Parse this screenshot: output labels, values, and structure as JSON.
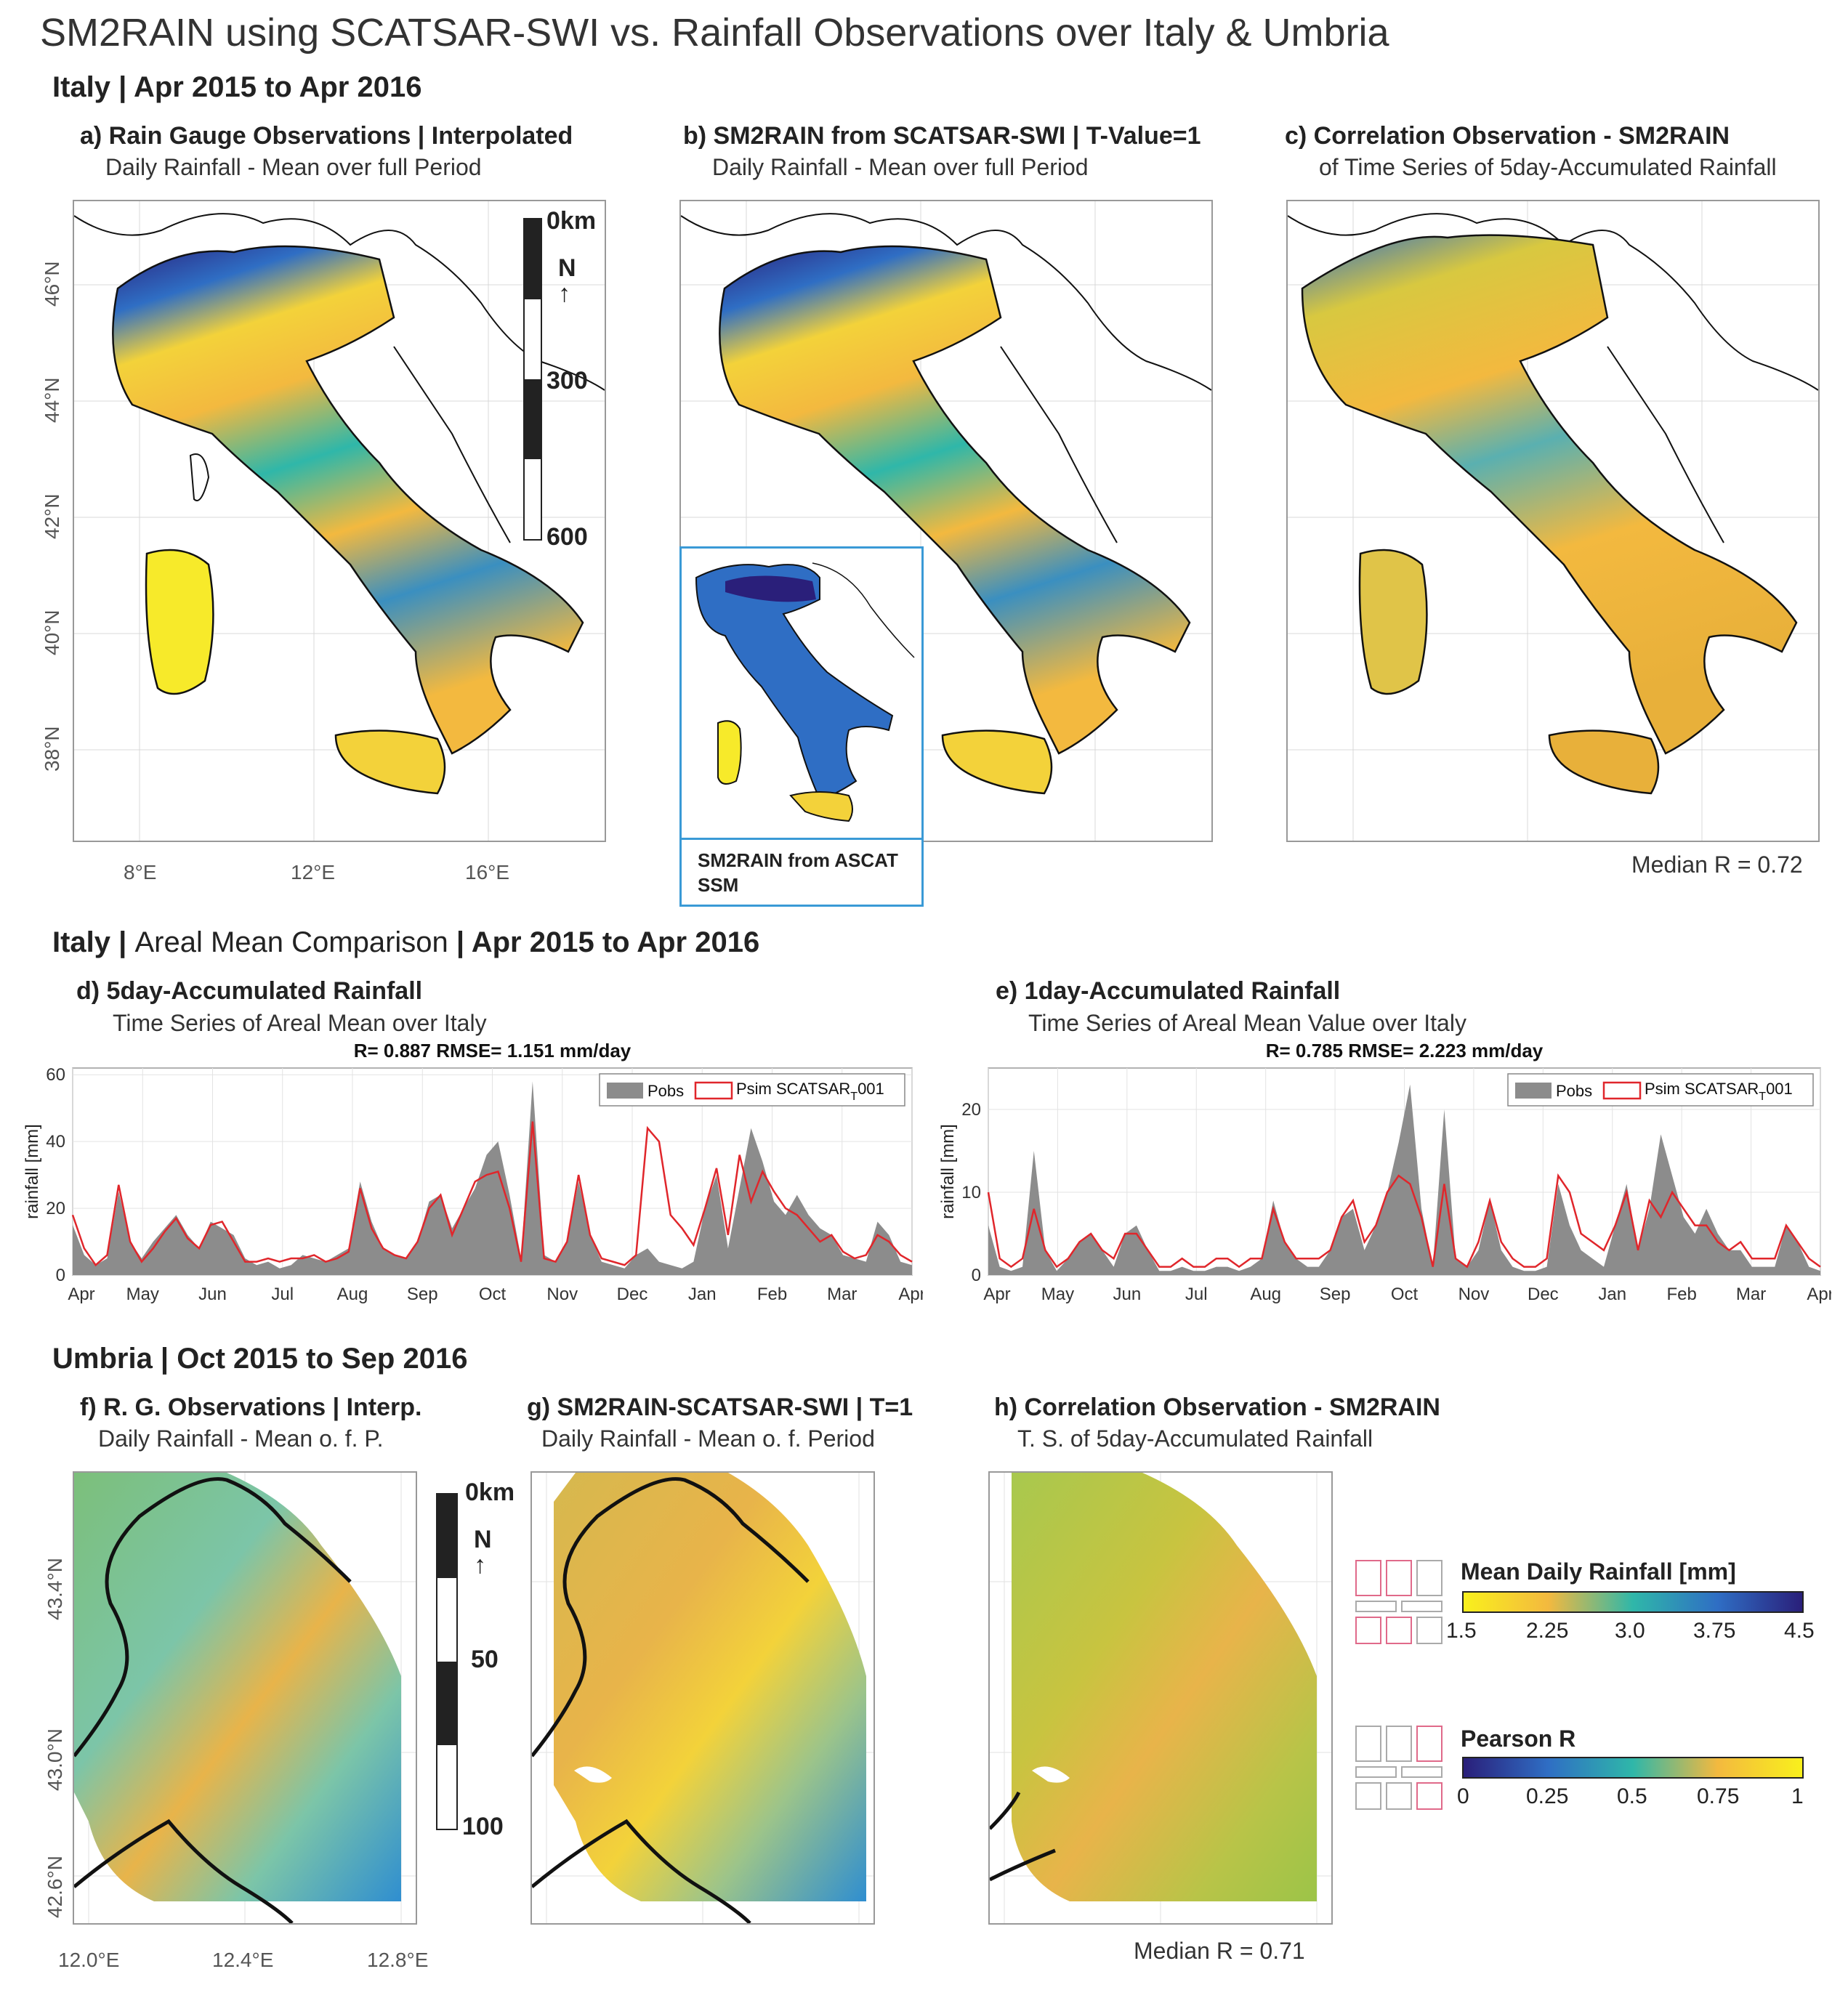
{
  "title": "SM2RAIN using SCATSAR-SWI vs. Rainfall Observations over Italy & Umbria",
  "sections": {
    "italy_maps": "Italy | Apr 2015 to Apr 2016",
    "italy_ts_a": "Italy |",
    "italy_ts_b": "Areal Mean Comparison",
    "italy_ts_c": "| Apr 2015 to Apr 2016",
    "umbria": "Umbria | Oct 2015 to Sep 2016"
  },
  "panels": {
    "a": {
      "title": "a) Rain Gauge Observations | Interpolated",
      "sub": "Daily Rainfall - Mean over full Period"
    },
    "b": {
      "title": "b) SM2RAIN from SCATSAR-SWI | T-Value=1",
      "sub": "Daily Rainfall - Mean over full Period",
      "inset": "SM2RAIN from ASCAT SSM"
    },
    "c": {
      "title": "c) Correlation Observation - SM2RAIN",
      "sub": "of Time Series of 5day-Accumulated Rainfall",
      "median": "Median R = 0.72"
    },
    "d": {
      "title": "d) 5day-Accumulated Rainfall",
      "sub": "Time Series of Areal Mean over Italy"
    },
    "e": {
      "title": "e) 1day-Accumulated Rainfall",
      "sub": "Time Series of Areal Mean Value over Italy"
    },
    "f": {
      "title": "f) R. G. Observations | Interp.",
      "sub": "Daily Rainfall - Mean o. f. P."
    },
    "g": {
      "title": "g) SM2RAIN-SCATSAR-SWI |  T=1",
      "sub": "Daily Rainfall - Mean o. f. Period"
    },
    "h": {
      "title": "h) Correlation Observation - SM2RAIN",
      "sub": "T. S. of 5day-Accumulated Rainfall",
      "median": "Median R = 0.71"
    }
  },
  "italy_axes": {
    "lat_ticks": [
      "46°N",
      "44°N",
      "42°N",
      "40°N",
      "38°N"
    ],
    "lon_ticks": [
      "8°E",
      "12°E",
      "16°E"
    ]
  },
  "italy_scalebar": {
    "labels": [
      "0km",
      "300",
      "600"
    ],
    "north": "N",
    "arrow": "↑"
  },
  "umbria_axes": {
    "lat_ticks": [
      "43.4°N",
      "43.0°N",
      "42.6°N"
    ],
    "lon_ticks": [
      "12.0°E",
      "12.4°E",
      "12.8°E"
    ]
  },
  "umbria_scalebar": {
    "labels": [
      "0km",
      "50",
      "100"
    ],
    "north": "N",
    "arrow": "↑"
  },
  "colorbars": {
    "rain": {
      "title": "Mean Daily Rainfall [mm]",
      "ticks": [
        "1.5",
        "2.25",
        "3.0",
        "3.75",
        "4.5"
      ],
      "colors": [
        "#f9f01c",
        "#f3b93f",
        "#2fb7a9",
        "#2f6ec4",
        "#2a1f7a"
      ]
    },
    "pearson": {
      "title": "Pearson R",
      "ticks": [
        "0",
        "0.25",
        "0.5",
        "0.75",
        "1"
      ],
      "colors": [
        "#2a1f7a",
        "#2f6ec4",
        "#2fb7a9",
        "#f3b93f",
        "#f9f01c"
      ]
    }
  },
  "colors": {
    "pobs": "#8c8c8c",
    "psim": "#e0262b"
  },
  "chart_data": [
    {
      "type": "area",
      "stats_label": "R= 0.887 RMSE= 1.151 mm/day",
      "ylabel": "rainfall [mm]",
      "ylim": [
        0,
        62
      ],
      "yticks": [
        0,
        20,
        40,
        60
      ],
      "months": [
        "Apr",
        "May",
        "Jun",
        "Jul",
        "Aug",
        "Sep",
        "Oct",
        "Nov",
        "Dec",
        "Jan",
        "Feb",
        "Mar",
        "Apr"
      ],
      "legend": {
        "pobs": "Pobs",
        "psim": "Psim SCATSAR",
        "psim_sub": "T",
        "psim_tail": "001"
      },
      "legend_position": "top-right",
      "x": [
        0,
        5,
        10,
        15,
        20,
        25,
        30,
        35,
        40,
        45,
        50,
        55,
        60,
        65,
        70,
        75,
        80,
        85,
        90,
        95,
        100,
        105,
        110,
        115,
        120,
        125,
        130,
        135,
        140,
        145,
        150,
        155,
        160,
        165,
        170,
        175,
        180,
        185,
        190,
        195,
        200,
        205,
        210,
        215,
        220,
        225,
        230,
        235,
        240,
        245,
        250,
        255,
        260,
        265,
        270,
        275,
        280,
        285,
        290,
        295,
        300,
        305,
        310,
        315,
        320,
        325,
        330,
        335,
        340,
        345,
        350,
        355,
        360,
        365
      ],
      "series": [
        {
          "name": "Pobs",
          "values": [
            15,
            6,
            3,
            5,
            25,
            10,
            5,
            10,
            14,
            18,
            12,
            8,
            16,
            14,
            12,
            5,
            3,
            4,
            2,
            3,
            6,
            5,
            4,
            6,
            8,
            28,
            16,
            8,
            6,
            5,
            10,
            22,
            24,
            14,
            20,
            26,
            36,
            40,
            24,
            5,
            58,
            6,
            4,
            10,
            28,
            12,
            4,
            3,
            2,
            6,
            8,
            4,
            3,
            2,
            4,
            20,
            30,
            8,
            26,
            44,
            34,
            22,
            18,
            24,
            18,
            14,
            12,
            6,
            5,
            4,
            16,
            12,
            4,
            3
          ]
        },
        {
          "name": "Psim SCATSAR T001",
          "values": [
            18,
            8,
            3,
            6,
            27,
            10,
            4,
            8,
            13,
            17,
            11,
            8,
            15,
            16,
            10,
            4,
            4,
            5,
            4,
            5,
            5,
            6,
            4,
            5,
            7,
            26,
            14,
            8,
            6,
            5,
            10,
            20,
            24,
            12,
            20,
            28,
            30,
            31,
            20,
            4,
            46,
            5,
            4,
            10,
            30,
            12,
            5,
            4,
            3,
            6,
            44,
            40,
            18,
            14,
            9,
            20,
            32,
            12,
            36,
            22,
            31,
            25,
            20,
            18,
            14,
            10,
            12,
            7,
            5,
            6,
            12,
            10,
            6,
            4
          ]
        }
      ]
    },
    {
      "type": "area",
      "stats_label": "R= 0.785 RMSE= 2.223 mm/day",
      "ylabel": "rainfall [mm]",
      "ylim": [
        0,
        25
      ],
      "yticks": [
        0,
        10,
        20
      ],
      "months": [
        "Apr",
        "May",
        "Jun",
        "Jul",
        "Aug",
        "Sep",
        "Oct",
        "Nov",
        "Dec",
        "Jan",
        "Feb",
        "Mar",
        "Apr"
      ],
      "legend": {
        "pobs": "Pobs",
        "psim": "Psim SCATSAR",
        "psim_sub": "T",
        "psim_tail": "001"
      },
      "legend_position": "top-right",
      "x": [
        0,
        5,
        10,
        15,
        20,
        25,
        30,
        35,
        40,
        45,
        50,
        55,
        60,
        65,
        70,
        75,
        80,
        85,
        90,
        95,
        100,
        105,
        110,
        115,
        120,
        125,
        130,
        135,
        140,
        145,
        150,
        155,
        160,
        165,
        170,
        175,
        180,
        185,
        190,
        195,
        200,
        205,
        210,
        215,
        220,
        225,
        230,
        235,
        240,
        245,
        250,
        255,
        260,
        265,
        270,
        275,
        280,
        285,
        290,
        295,
        300,
        305,
        310,
        315,
        320,
        325,
        330,
        335,
        340,
        345,
        350,
        355,
        360,
        365
      ],
      "series": [
        {
          "name": "Pobs",
          "values": [
            6,
            1,
            0.5,
            1,
            15,
            3,
            0.5,
            2,
            4,
            5,
            3,
            1,
            5,
            6,
            3,
            0.5,
            0.5,
            1,
            0.5,
            0.5,
            1,
            1,
            0.5,
            1,
            2,
            9,
            4,
            2,
            1,
            1,
            3,
            7,
            8,
            3,
            6,
            10,
            16,
            23,
            8,
            1,
            20,
            2,
            1,
            3,
            9,
            3,
            1,
            0.5,
            0.5,
            1,
            11,
            6,
            3,
            2,
            1,
            6,
            11,
            3,
            8,
            17,
            12,
            7,
            5,
            8,
            5,
            3,
            3,
            1,
            1,
            1,
            6,
            4,
            1,
            0.5
          ]
        },
        {
          "name": "Psim SCATSAR T001",
          "values": [
            10,
            2,
            1,
            2,
            8,
            3,
            1,
            2,
            4,
            5,
            3,
            2,
            5,
            5,
            3,
            1,
            1,
            2,
            1,
            1,
            2,
            2,
            1,
            2,
            2,
            8,
            4,
            2,
            2,
            2,
            3,
            7,
            9,
            4,
            6,
            10,
            12,
            11,
            7,
            1,
            11,
            2,
            1,
            4,
            9,
            4,
            2,
            1,
            1,
            2,
            12,
            10,
            5,
            4,
            3,
            6,
            10,
            3,
            9,
            7,
            10,
            8,
            6,
            6,
            4,
            3,
            4,
            2,
            2,
            2,
            6,
            4,
            2,
            1
          ]
        }
      ]
    }
  ]
}
